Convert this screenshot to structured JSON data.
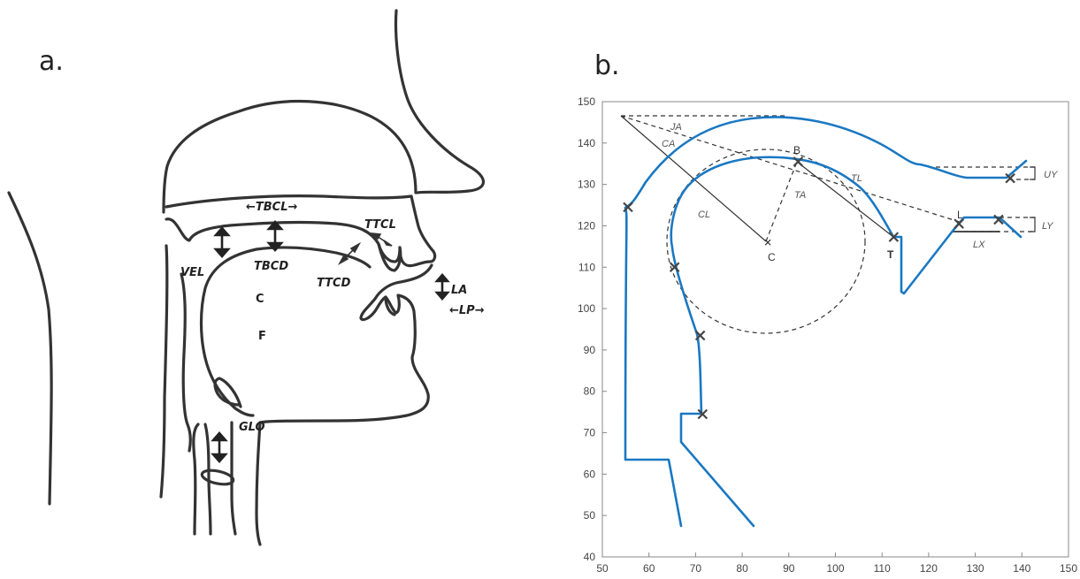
{
  "panel_a": {
    "label": "a.",
    "labels": {
      "tbcl": "←TBCL→",
      "ttcl": "TTCL",
      "vel": "VEL",
      "tbcd": "TBCD",
      "ttcd": "TTCD",
      "la": "LA",
      "lp": "←LP→",
      "c": "C",
      "f": "F",
      "glo": "GLO"
    }
  },
  "panel_b": {
    "label": "b.",
    "x_ticks": [
      "50",
      "60",
      "70",
      "80",
      "90",
      "100",
      "110",
      "120",
      "130",
      "140",
      "150"
    ],
    "y_ticks": [
      "40",
      "50",
      "60",
      "70",
      "80",
      "90",
      "100",
      "110",
      "120",
      "130",
      "140",
      "150"
    ],
    "xlim": [
      50,
      150
    ],
    "ylim": [
      40,
      150
    ],
    "annotations": {
      "ja": "JA",
      "ca": "CA",
      "cl": "CL",
      "ta": "TA",
      "tl": "TL",
      "b": "B",
      "c": "C",
      "t": "T",
      "l": "L",
      "uy": "UY",
      "ly": "LY",
      "lx": "LX"
    },
    "colors": {
      "tract": "#1a78c2",
      "construction": "#333333",
      "marker": "#444444"
    },
    "tract_outline": [
      [
        55.5,
        124.5
      ],
      [
        55.5,
        124.5
      ],
      [
        57.5,
        126
      ],
      [
        60,
        130.5
      ],
      [
        63,
        134.5
      ],
      [
        67,
        138.5
      ],
      [
        72,
        141.8
      ],
      [
        78,
        144.3
      ],
      [
        85,
        145.7
      ],
      [
        91,
        146.1
      ],
      [
        97,
        145.7
      ],
      [
        103,
        144.7
      ],
      [
        108,
        142.8
      ],
      [
        112,
        140.5
      ],
      [
        115,
        138.2
      ],
      [
        118,
        135.5
      ],
      [
        120,
        134.8
      ],
      [
        124,
        133
      ],
      [
        128,
        131.5
      ],
      [
        133,
        131.5
      ],
      [
        137.5,
        131.5
      ],
      [
        139.5,
        133.5
      ],
      [
        142,
        135.5
      ]
    ],
    "inner_contour": [
      [
        113,
        117
      ],
      [
        111,
        120
      ],
      [
        109,
        124
      ],
      [
        106.5,
        127.5
      ],
      [
        104,
        130.5
      ],
      [
        100.5,
        133.5
      ],
      [
        96,
        135.5
      ],
      [
        92,
        136.5
      ],
      [
        87,
        137
      ],
      [
        82,
        136.5
      ],
      [
        77.5,
        135
      ],
      [
        74,
        133
      ],
      [
        70.5,
        130
      ],
      [
        68,
        126.5
      ],
      [
        66,
        122
      ],
      [
        65,
        117.5
      ],
      [
        64.8,
        113
      ],
      [
        65.5,
        110
      ],
      [
        67,
        106
      ],
      [
        68.5,
        102
      ],
      [
        70,
        97
      ],
      [
        71,
        93.5
      ],
      [
        71,
        84
      ],
      [
        71.5,
        79
      ],
      [
        71.5,
        74.5
      ]
    ],
    "markers": [
      [
        55.5,
        124.5
      ],
      [
        65.5,
        110
      ],
      [
        71,
        93.5
      ],
      [
        71.5,
        74.5
      ],
      [
        92,
        135.5
      ],
      [
        112.5,
        117.3
      ],
      [
        126.5,
        120.5
      ],
      [
        135,
        121.5
      ],
      [
        137.5,
        131.5
      ]
    ]
  }
}
